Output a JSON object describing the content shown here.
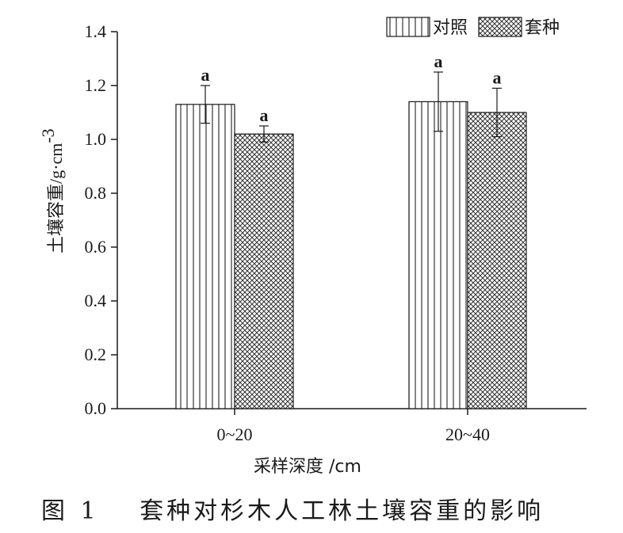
{
  "chart_data": {
    "type": "bar",
    "categories": [
      "0~20",
      "20~40"
    ],
    "series": [
      {
        "name": "对照",
        "values": [
          1.13,
          1.14
        ],
        "error": [
          0.07,
          0.11
        ],
        "sig": [
          "a",
          "a"
        ],
        "pattern": "vertical-lines"
      },
      {
        "name": "套种",
        "values": [
          1.02,
          1.1
        ],
        "error": [
          0.03,
          0.09
        ],
        "sig": [
          "a",
          "a"
        ],
        "pattern": "crosshatch"
      }
    ],
    "ylim": [
      0,
      1.4
    ],
    "yticks": [
      "0.0",
      "0.2",
      "0.4",
      "0.6",
      "0.8",
      "1.0",
      "1.2",
      "1.4"
    ],
    "ylabel_main": "土壤容重",
    "ylabel_unit": "/g·cm",
    "ylabel_exp": "-3",
    "xlabel": "采样深度 /cm",
    "legend_position": "top-right",
    "grid": false
  },
  "caption": {
    "label": "图",
    "number": "1",
    "text": "套种对杉木人工林土壤容重的影响"
  }
}
